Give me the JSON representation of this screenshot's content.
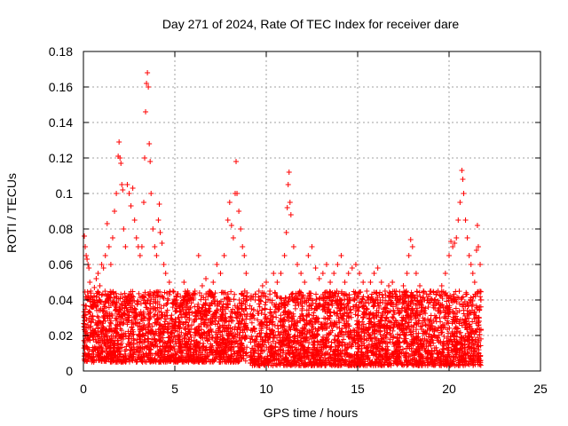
{
  "chart_data": {
    "type": "scatter",
    "title": "Day 271 of 2024, Rate Of TEC Index for receiver dare",
    "xlabel": "GPS time / hours",
    "ylabel": "ROTI / TECUs",
    "xlim": [
      0,
      25
    ],
    "ylim": [
      0,
      0.18
    ],
    "x_ticks": [
      0,
      5,
      10,
      15,
      20,
      25
    ],
    "x_tick_labels": [
      "0",
      "5",
      "10",
      "15",
      "20",
      "25"
    ],
    "y_ticks": [
      0,
      0.02,
      0.04,
      0.06,
      0.08,
      0.1,
      0.12,
      0.14,
      0.16,
      0.18
    ],
    "y_tick_labels": [
      "0",
      "0.02",
      "0.04",
      "0.06",
      "0.08",
      "0.1",
      "0.12",
      "0.14",
      "0.16",
      "0.18"
    ],
    "grid": true,
    "marker": "+",
    "color": "#ff0000",
    "series": [
      {
        "points": [
          [
            0.05,
            0.076
          ],
          [
            0.1,
            0.07
          ],
          [
            0.15,
            0.065
          ],
          [
            0.2,
            0.063
          ],
          [
            0.25,
            0.06
          ],
          [
            0.3,
            0.058
          ],
          [
            0.35,
            0.05
          ],
          [
            0.4,
            0.045
          ],
          [
            0.5,
            0.04
          ],
          [
            0.6,
            0.047
          ],
          [
            0.7,
            0.052
          ],
          [
            0.8,
            0.055
          ],
          [
            0.9,
            0.048
          ],
          [
            1.0,
            0.06
          ],
          [
            1.1,
            0.058
          ],
          [
            1.2,
            0.065
          ],
          [
            1.3,
            0.083
          ],
          [
            1.4,
            0.07
          ],
          [
            1.5,
            0.06
          ],
          [
            1.6,
            0.075
          ],
          [
            1.7,
            0.09
          ],
          [
            1.8,
            0.1
          ],
          [
            1.9,
            0.121
          ],
          [
            1.95,
            0.129
          ],
          [
            2.0,
            0.12
          ],
          [
            2.05,
            0.117
          ],
          [
            2.1,
            0.105
          ],
          [
            2.15,
            0.102
          ],
          [
            2.2,
            0.08
          ],
          [
            2.3,
            0.07
          ],
          [
            2.4,
            0.105
          ],
          [
            2.5,
            0.1
          ],
          [
            2.6,
            0.093
          ],
          [
            2.7,
            0.103
          ],
          [
            2.8,
            0.085
          ],
          [
            2.9,
            0.075
          ],
          [
            3.0,
            0.07
          ],
          [
            3.1,
            0.065
          ],
          [
            3.2,
            0.07
          ],
          [
            3.3,
            0.095
          ],
          [
            3.35,
            0.12
          ],
          [
            3.4,
            0.146
          ],
          [
            3.45,
            0.162
          ],
          [
            3.5,
            0.168
          ],
          [
            3.55,
            0.16
          ],
          [
            3.6,
            0.128
          ],
          [
            3.65,
            0.118
          ],
          [
            3.7,
            0.1
          ],
          [
            3.8,
            0.08
          ],
          [
            3.9,
            0.07
          ],
          [
            4.0,
            0.065
          ],
          [
            4.1,
            0.085
          ],
          [
            4.15,
            0.094
          ],
          [
            4.2,
            0.078
          ],
          [
            4.3,
            0.072
          ],
          [
            4.4,
            0.06
          ],
          [
            4.5,
            0.055
          ],
          [
            4.7,
            0.05
          ],
          [
            4.9,
            0.045
          ],
          [
            5.1,
            0.04
          ],
          [
            5.3,
            0.042
          ],
          [
            5.5,
            0.05
          ],
          [
            5.7,
            0.045
          ],
          [
            5.9,
            0.04
          ],
          [
            6.1,
            0.045
          ],
          [
            6.3,
            0.065
          ],
          [
            6.5,
            0.048
          ],
          [
            6.7,
            0.052
          ],
          [
            6.9,
            0.045
          ],
          [
            7.1,
            0.05
          ],
          [
            7.3,
            0.06
          ],
          [
            7.5,
            0.055
          ],
          [
            7.7,
            0.065
          ],
          [
            7.9,
            0.085
          ],
          [
            8.0,
            0.095
          ],
          [
            8.1,
            0.082
          ],
          [
            8.2,
            0.075
          ],
          [
            8.3,
            0.1
          ],
          [
            8.35,
            0.118
          ],
          [
            8.4,
            0.1
          ],
          [
            8.5,
            0.09
          ],
          [
            8.6,
            0.08
          ],
          [
            8.7,
            0.07
          ],
          [
            8.8,
            0.065
          ],
          [
            8.9,
            0.055
          ],
          [
            9.2,
            0.035
          ],
          [
            9.4,
            0.04
          ],
          [
            9.6,
            0.045
          ],
          [
            9.8,
            0.048
          ],
          [
            10.0,
            0.05
          ],
          [
            10.2,
            0.045
          ],
          [
            10.4,
            0.055
          ],
          [
            10.6,
            0.05
          ],
          [
            10.8,
            0.055
          ],
          [
            11.0,
            0.065
          ],
          [
            11.1,
            0.078
          ],
          [
            11.15,
            0.092
          ],
          [
            11.2,
            0.105
          ],
          [
            11.25,
            0.112
          ],
          [
            11.3,
            0.095
          ],
          [
            11.35,
            0.088
          ],
          [
            11.5,
            0.07
          ],
          [
            11.7,
            0.06
          ],
          [
            11.9,
            0.055
          ],
          [
            12.1,
            0.05
          ],
          [
            12.3,
            0.065
          ],
          [
            12.5,
            0.07
          ],
          [
            12.7,
            0.058
          ],
          [
            12.9,
            0.052
          ],
          [
            13.1,
            0.055
          ],
          [
            13.3,
            0.06
          ],
          [
            13.5,
            0.05
          ],
          [
            13.7,
            0.055
          ],
          [
            13.9,
            0.06
          ],
          [
            14.1,
            0.065
          ],
          [
            14.3,
            0.05
          ],
          [
            14.5,
            0.055
          ],
          [
            14.7,
            0.058
          ],
          [
            14.9,
            0.06
          ],
          [
            15.1,
            0.055
          ],
          [
            15.3,
            0.05
          ],
          [
            15.5,
            0.045
          ],
          [
            15.7,
            0.05
          ],
          [
            15.9,
            0.055
          ],
          [
            16.1,
            0.058
          ],
          [
            16.3,
            0.05
          ],
          [
            16.5,
            0.045
          ],
          [
            16.7,
            0.048
          ],
          [
            16.9,
            0.05
          ],
          [
            17.1,
            0.045
          ],
          [
            17.3,
            0.04
          ],
          [
            17.5,
            0.048
          ],
          [
            17.7,
            0.055
          ],
          [
            17.8,
            0.065
          ],
          [
            17.9,
            0.074
          ],
          [
            18.0,
            0.07
          ],
          [
            18.2,
            0.055
          ],
          [
            18.4,
            0.048
          ],
          [
            18.6,
            0.045
          ],
          [
            18.8,
            0.04
          ],
          [
            19.0,
            0.045
          ],
          [
            19.2,
            0.04
          ],
          [
            19.4,
            0.045
          ],
          [
            19.6,
            0.048
          ],
          [
            19.8,
            0.055
          ],
          [
            20.0,
            0.065
          ],
          [
            20.1,
            0.073
          ],
          [
            20.2,
            0.07
          ],
          [
            20.3,
            0.072
          ],
          [
            20.4,
            0.075
          ],
          [
            20.5,
            0.085
          ],
          [
            20.6,
            0.095
          ],
          [
            20.7,
            0.113
          ],
          [
            20.75,
            0.108
          ],
          [
            20.8,
            0.1
          ],
          [
            20.9,
            0.085
          ],
          [
            21.0,
            0.075
          ],
          [
            21.1,
            0.065
          ],
          [
            21.2,
            0.06
          ],
          [
            21.3,
            0.055
          ],
          [
            21.4,
            0.05
          ],
          [
            21.5,
            0.068
          ],
          [
            21.55,
            0.082
          ],
          [
            21.6,
            0.07
          ],
          [
            21.7,
            0.06
          ]
        ]
      }
    ],
    "dense_band": {
      "segments": [
        {
          "x_start": 0.0,
          "x_end": 8.95,
          "y_min": 0.005,
          "y_max": 0.045
        },
        {
          "x_start": 9.1,
          "x_end": 21.75,
          "y_min": 0.003,
          "y_max": 0.045
        }
      ]
    }
  }
}
